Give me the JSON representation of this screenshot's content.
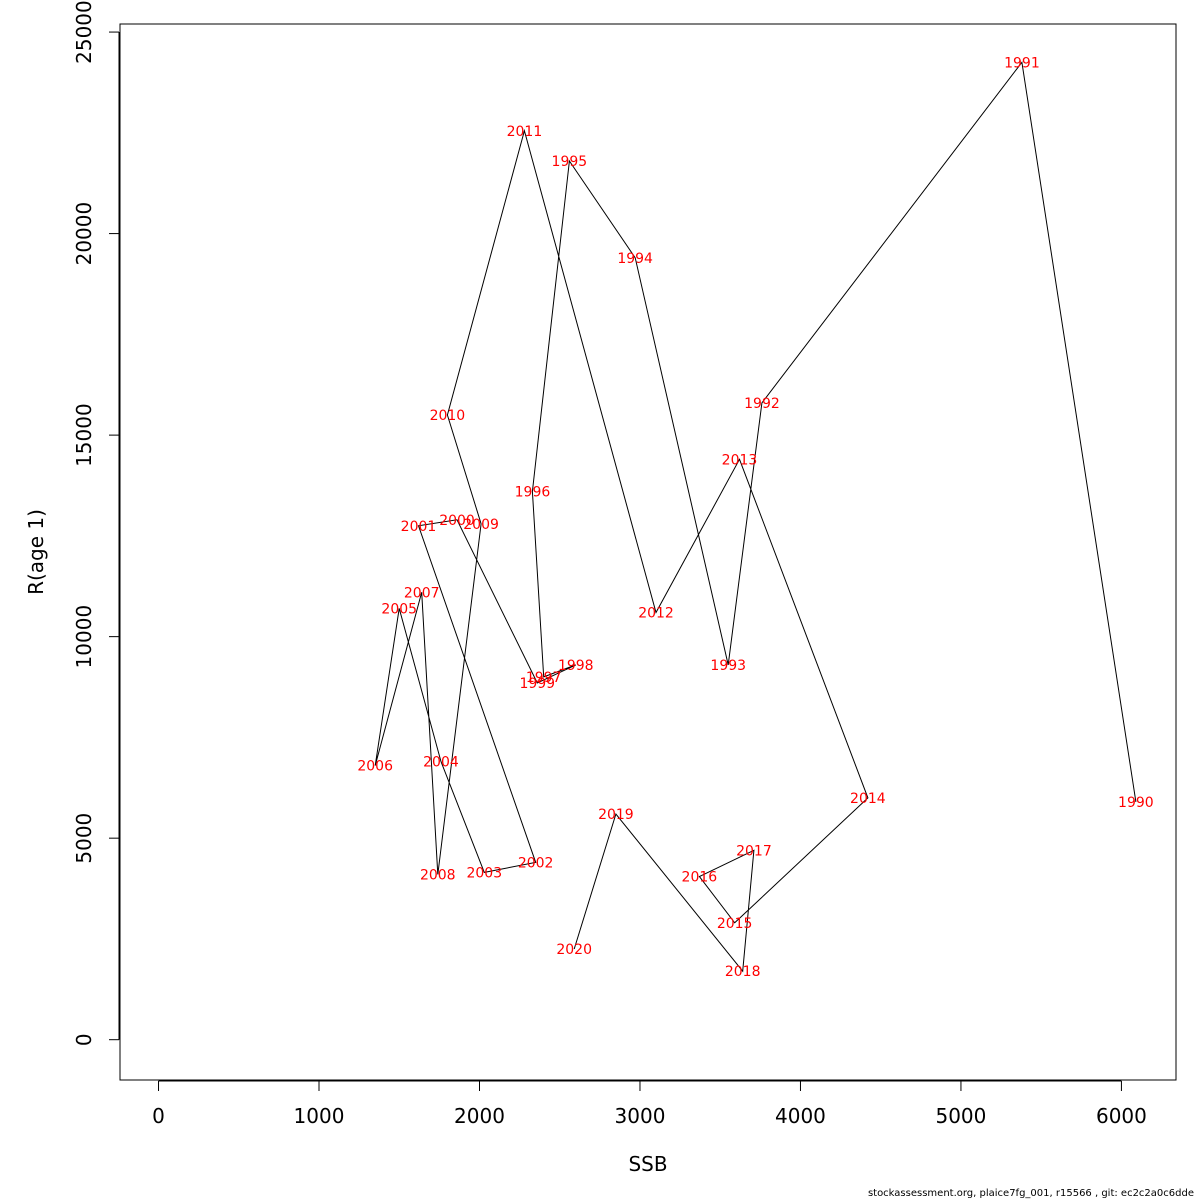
{
  "chart_data": {
    "type": "line",
    "xlabel": "SSB",
    "ylabel": "R(age 1)",
    "xlim": [
      -240,
      6340
    ],
    "ylim": [
      -1000,
      25200
    ],
    "x_ticks": [
      0,
      1000,
      2000,
      3000,
      4000,
      5000,
      6000
    ],
    "y_ticks": [
      0,
      5000,
      10000,
      15000,
      20000,
      25000
    ],
    "line_color": "#000000",
    "label_color": "#ff0000",
    "points": [
      {
        "label": "1990",
        "x": 6090,
        "y": 5900
      },
      {
        "label": "1991",
        "x": 5380,
        "y": 24250
      },
      {
        "label": "1992",
        "x": 3760,
        "y": 15800
      },
      {
        "label": "1993",
        "x": 3550,
        "y": 9300
      },
      {
        "label": "1994",
        "x": 2970,
        "y": 19400
      },
      {
        "label": "1995",
        "x": 2560,
        "y": 21800
      },
      {
        "label": "1996",
        "x": 2330,
        "y": 13600
      },
      {
        "label": "1997",
        "x": 2400,
        "y": 9000
      },
      {
        "label": "1998",
        "x": 2600,
        "y": 9300
      },
      {
        "label": "1999",
        "x": 2360,
        "y": 8850
      },
      {
        "label": "2000",
        "x": 1860,
        "y": 12900
      },
      {
        "label": "2001",
        "x": 1620,
        "y": 12750
      },
      {
        "label": "2002",
        "x": 2350,
        "y": 4400
      },
      {
        "label": "2003",
        "x": 2030,
        "y": 4150
      },
      {
        "label": "2004",
        "x": 1760,
        "y": 6900
      },
      {
        "label": "2005",
        "x": 1500,
        "y": 10700
      },
      {
        "label": "2006",
        "x": 1350,
        "y": 6800
      },
      {
        "label": "2007",
        "x": 1640,
        "y": 11100
      },
      {
        "label": "2008",
        "x": 1740,
        "y": 4100
      },
      {
        "label": "2009",
        "x": 2010,
        "y": 12800
      },
      {
        "label": "2010",
        "x": 1800,
        "y": 15500
      },
      {
        "label": "2011",
        "x": 2280,
        "y": 22550
      },
      {
        "label": "2012",
        "x": 3100,
        "y": 10600
      },
      {
        "label": "2013",
        "x": 3620,
        "y": 14400
      },
      {
        "label": "2014",
        "x": 4420,
        "y": 6000
      },
      {
        "label": "2015",
        "x": 3590,
        "y": 2900
      },
      {
        "label": "2016",
        "x": 3370,
        "y": 4050
      },
      {
        "label": "2017",
        "x": 3710,
        "y": 4700
      },
      {
        "label": "2018",
        "x": 3640,
        "y": 1700
      },
      {
        "label": "2019",
        "x": 2850,
        "y": 5600
      },
      {
        "label": "2020",
        "x": 2590,
        "y": 2250
      }
    ]
  },
  "footer": {
    "text": "stockassessment.org, plaice7fg_001, r15566 , git: ec2c2a0c6dde"
  }
}
